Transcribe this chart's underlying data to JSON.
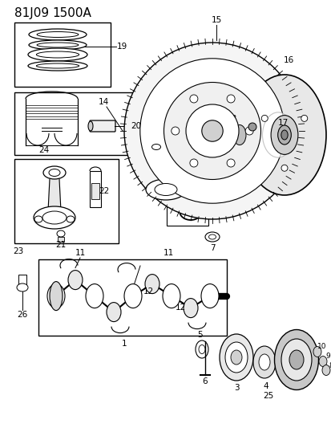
{
  "title_part1": "81J09",
  "title_part2": "1500A",
  "background_color": "#ffffff",
  "line_color": "#000000",
  "figsize": [
    4.14,
    5.33
  ],
  "dpi": 100
}
